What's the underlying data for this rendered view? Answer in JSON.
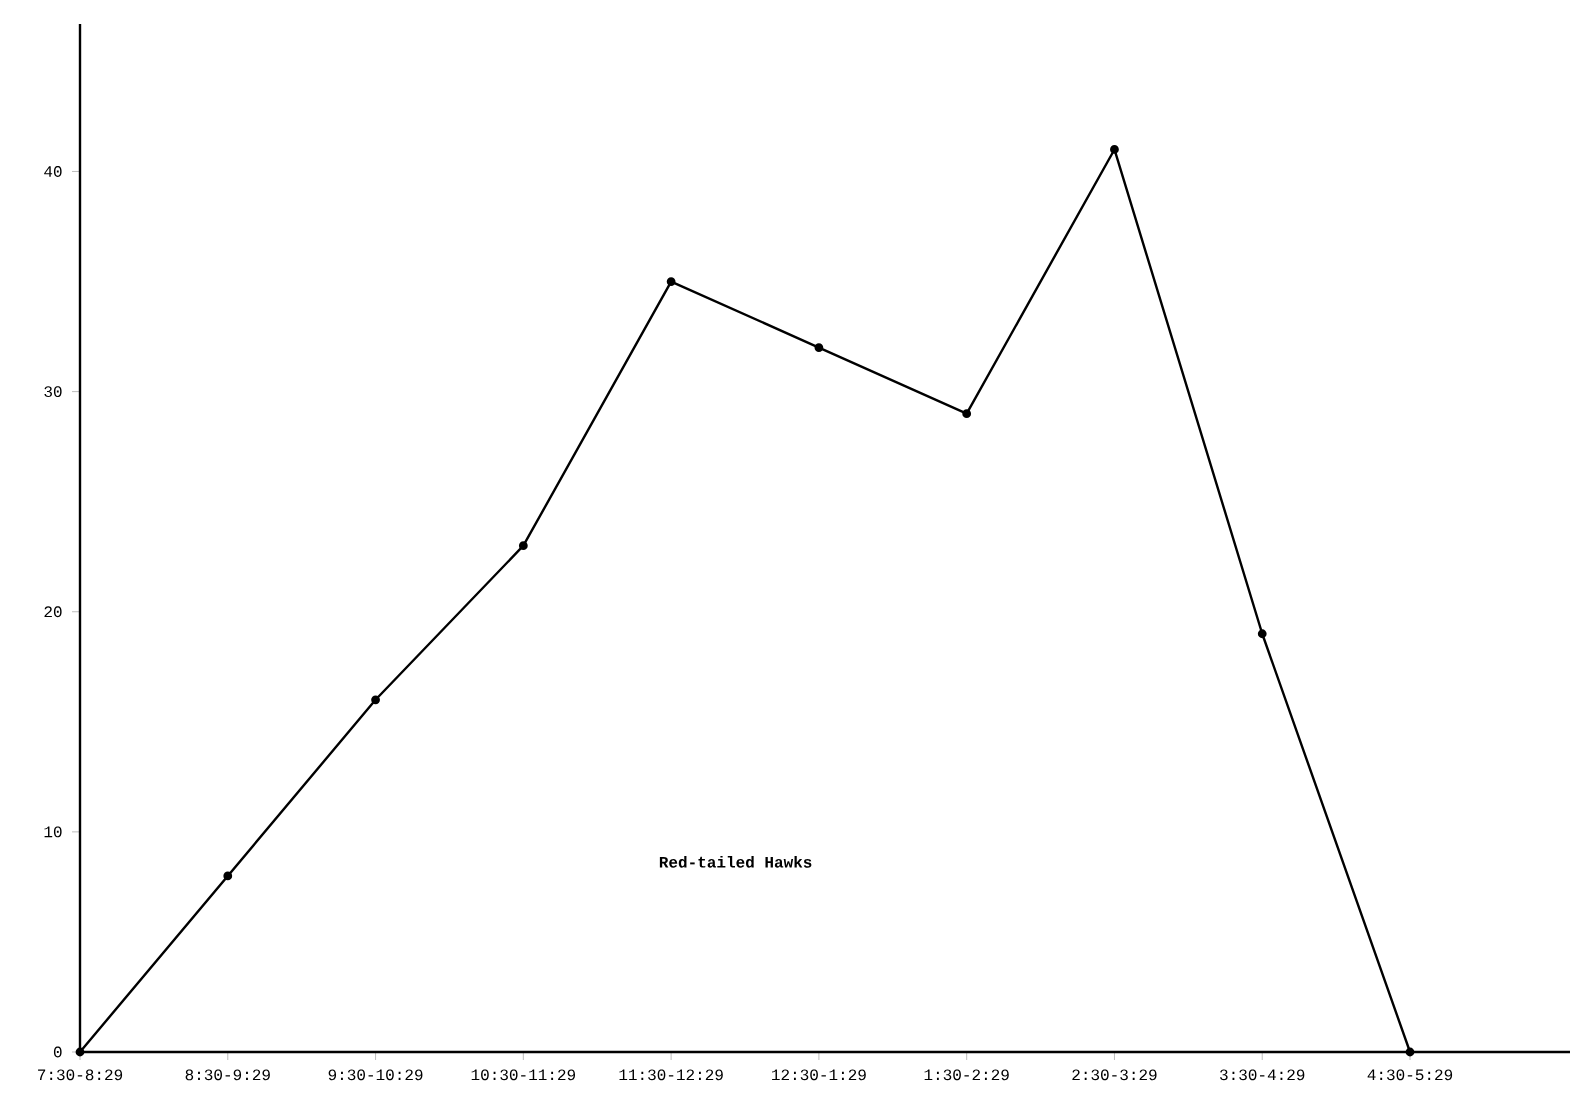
{
  "chart_data": {
    "type": "line",
    "categories": [
      "7:30-8:29",
      "8:30-9:29",
      "9:30-10:29",
      "10:30-11:29",
      "11:30-12:29",
      "12:30-1:29",
      "1:30-2:29",
      "2:30-3:29",
      "3:30-4:29",
      "4:30-5:29"
    ],
    "series": [
      {
        "name": "Red-tailed Hawks",
        "color": "#000000",
        "values": [
          0,
          8,
          16,
          23,
          35,
          32,
          29,
          41,
          19,
          0
        ]
      }
    ],
    "ylim": [
      0,
      46.7
    ],
    "yticks": [
      0,
      10,
      20,
      30,
      40
    ],
    "grid": false,
    "legend": false,
    "marker": "circle",
    "line_style": "solid"
  }
}
